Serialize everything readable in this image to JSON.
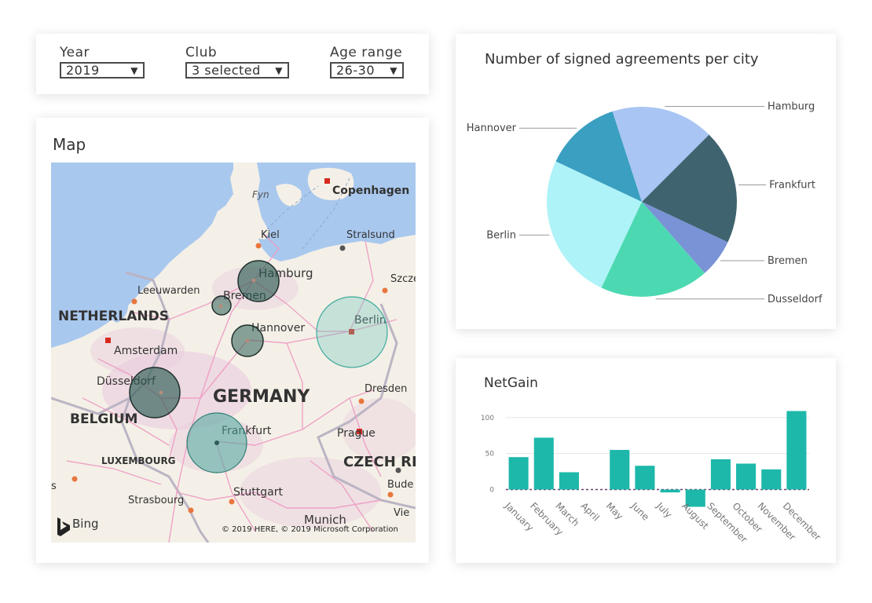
{
  "filters": {
    "year": {
      "label": "Year",
      "value": "2019"
    },
    "club": {
      "label": "Club",
      "value": "3 selected"
    },
    "age": {
      "label": "Age range",
      "value": "26-30"
    }
  },
  "map": {
    "title": "Map",
    "labels": {
      "copenhagen": "Copenhagen",
      "fyn": "Fyn",
      "kiel": "Kiel",
      "stralsund": "Stralsund",
      "szczecin": "Szcze",
      "hamburg": "Hamburg",
      "leeuwarden": "Leeuwarden",
      "bremen": "Bremen",
      "netherlands": "NETHERLANDS",
      "berlin": "Berlin",
      "hannover": "Hannover",
      "amsterdam": "Amsterdam",
      "dusseldorf": "Düsseldorf",
      "dresden": "Dresden",
      "germany": "GERMANY",
      "belgium": "BELGIUM",
      "frankfurt": "Frankfurt",
      "prague": "Prague",
      "luxembourg": "LUXEMBOURG",
      "czech": "CZECH RE",
      "budejovice": "Bude",
      "s_edge": "s",
      "strasbourg": "Strasbourg",
      "stuttgart": "Stuttgart",
      "vienna": "Vie",
      "munich": "Munich",
      "bing": "Bing",
      "copyright": "© 2019 HERE, © 2019 Microsoft Corporation"
    },
    "colors": {
      "water": "#a9c8ee",
      "land": "#f4f0e7",
      "dark_bubble": "#2e5e55",
      "light_bubble": "#6cc7bd"
    }
  },
  "pie": {
    "title": "Number of signed agreements per city"
  },
  "bar": {
    "title": "NetGain"
  },
  "chart_data": [
    {
      "type": "pie",
      "title": "Number of signed agreements per city",
      "slices": [
        {
          "label": "Frankfurt",
          "value": 19.5,
          "color": "#3f6470"
        },
        {
          "label": "Bremen",
          "value": 6.5,
          "color": "#7a93d6"
        },
        {
          "label": "Dusseldorf",
          "value": 18.5,
          "color": "#4cd9b1"
        },
        {
          "label": "Berlin",
          "value": 25,
          "color": "#aef3f8"
        },
        {
          "label": "Hannover",
          "value": 13,
          "color": "#3a9fc0"
        },
        {
          "label": "Hamburg",
          "value": 17.5,
          "color": "#a8c5f3"
        }
      ]
    },
    {
      "type": "bar",
      "title": "NetGain",
      "categories": [
        "January",
        "February",
        "March",
        "April",
        "May",
        "June",
        "July",
        "August",
        "September",
        "October",
        "November",
        "December"
      ],
      "values": [
        45,
        72,
        24,
        0,
        55,
        33,
        -4,
        -24,
        42,
        36,
        28,
        109
      ],
      "yticks": [
        0,
        50,
        100
      ],
      "ylim": [
        -30,
        115
      ],
      "color": "#1db8aa",
      "baseline_color": "#6b3a6e"
    }
  ]
}
